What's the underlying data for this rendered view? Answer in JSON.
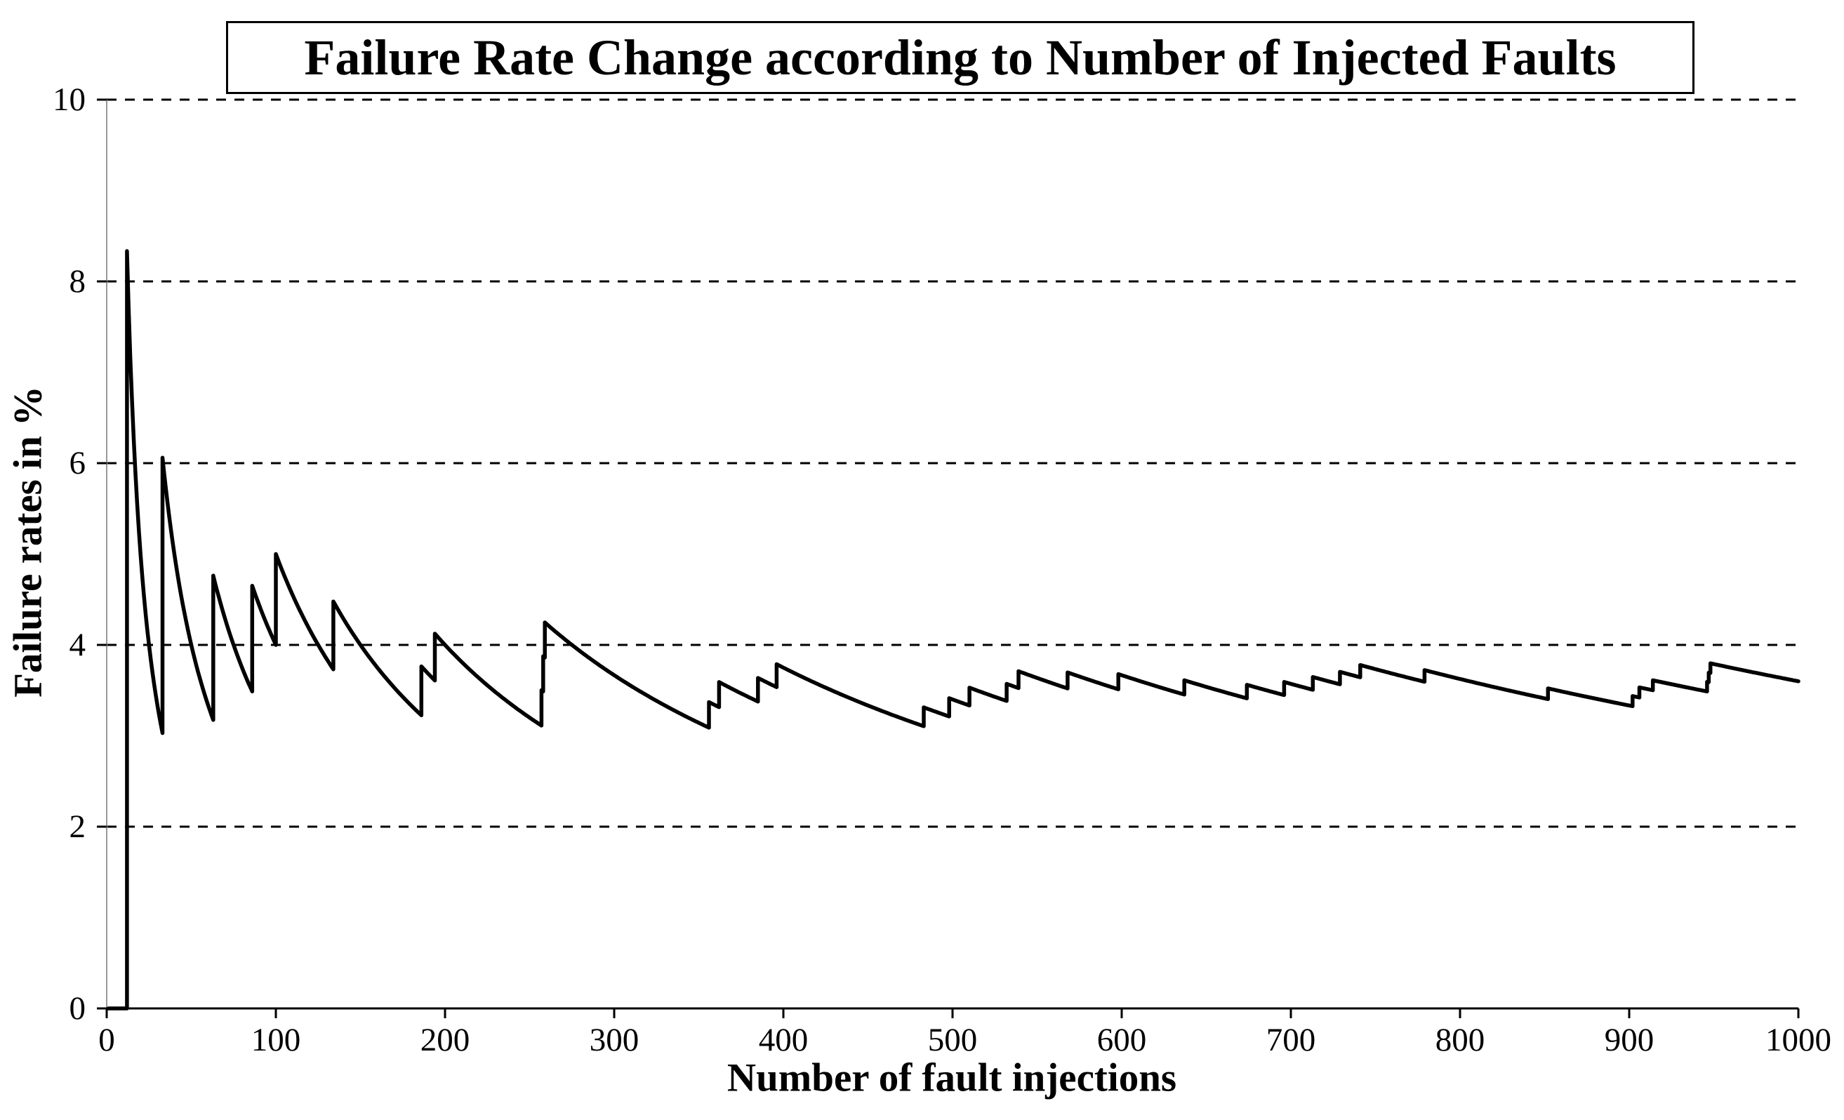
{
  "title": "Failure Rate Change according to Number of Injected Faults",
  "colors": {
    "series": "#000000",
    "gridline": "#000000",
    "x_axis": "#000000",
    "y_axis": "#999999",
    "background": "#ffffff",
    "title_box_border": "#000000"
  },
  "chart_data": {
    "type": "line",
    "title": "Failure Rate Change according to Number of Injected Faults",
    "xlabel": "Number of fault injections",
    "ylabel": "Failure rates in %",
    "xlim": [
      0,
      1000
    ],
    "ylim": [
      0,
      10
    ],
    "x_ticks": [
      0,
      100,
      200,
      300,
      400,
      500,
      600,
      700,
      800,
      900,
      1000
    ],
    "y_ticks": [
      0,
      2,
      4,
      6,
      8,
      10
    ],
    "grid": "horizontal dashed gridlines at y = 2,4,6,8,10",
    "legend_position": "none",
    "series": [
      {
        "name": "failure rate",
        "color": "#000000",
        "model": "rate(n) = 100 * cumulative_failures(n) / n, for n = 1..1000; rate is 0 before the first failure",
        "failure_injections": [
          12,
          33,
          63,
          86,
          100,
          134,
          186,
          194,
          257,
          258,
          259,
          356,
          362,
          385,
          396,
          483,
          498,
          510,
          532,
          539,
          568,
          598,
          637,
          674,
          696,
          713,
          729,
          741,
          779,
          852,
          902,
          906,
          914,
          946,
          947,
          948
        ],
        "key_points": [
          [
            11,
            0.0
          ],
          [
            12,
            8.33
          ],
          [
            32,
            3.13
          ],
          [
            33,
            6.06
          ],
          [
            62,
            3.23
          ],
          [
            63,
            4.76
          ],
          [
            85,
            3.53
          ],
          [
            86,
            4.65
          ],
          [
            99,
            4.04
          ],
          [
            100,
            5.0
          ],
          [
            133,
            3.76
          ],
          [
            134,
            4.48
          ],
          [
            185,
            3.24
          ],
          [
            186,
            3.76
          ],
          [
            193,
            3.63
          ],
          [
            194,
            4.12
          ],
          [
            256,
            3.13
          ],
          [
            259,
            4.25
          ],
          [
            355,
            3.1
          ],
          [
            356,
            3.37
          ],
          [
            362,
            3.59
          ],
          [
            385,
            3.64
          ],
          [
            396,
            3.79
          ],
          [
            482,
            3.11
          ],
          [
            483,
            3.31
          ],
          [
            498,
            3.41
          ],
          [
            510,
            3.53
          ],
          [
            532,
            3.57
          ],
          [
            539,
            3.71
          ],
          [
            568,
            3.7
          ],
          [
            598,
            3.68
          ],
          [
            637,
            3.61
          ],
          [
            674,
            3.56
          ],
          [
            696,
            3.59
          ],
          [
            713,
            3.65
          ],
          [
            729,
            3.7
          ],
          [
            741,
            3.78
          ],
          [
            778,
            3.6
          ],
          [
            779,
            3.72
          ],
          [
            851,
            3.41
          ],
          [
            852,
            3.52
          ],
          [
            901,
            3.33
          ],
          [
            902,
            3.44
          ],
          [
            906,
            3.53
          ],
          [
            914,
            3.61
          ],
          [
            945,
            3.49
          ],
          [
            948,
            3.8
          ],
          [
            1000,
            3.6
          ]
        ]
      }
    ]
  }
}
